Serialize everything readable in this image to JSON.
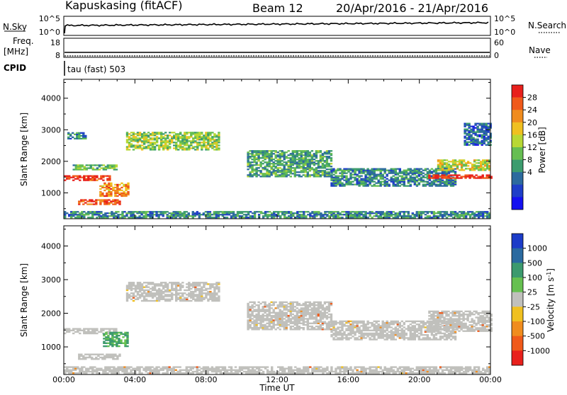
{
  "header": {
    "station": "Kapuskasing (fitACF)",
    "beam": "Beam 12",
    "date_range": "20/Apr/2016 - 21/Apr/2016"
  },
  "noise_panel": {
    "left_label": "N.Sky",
    "left_ticks": [
      "10^5",
      "10^0"
    ],
    "right_label": "N.Search",
    "right_ticks": [
      "10^5",
      "10^0"
    ]
  },
  "freq_panel": {
    "left_label_1": "Freq.",
    "left_label_2": "[MHz]",
    "left_ticks": [
      "18",
      "8"
    ],
    "right_label": "Nave",
    "right_ticks": [
      "60",
      "0"
    ]
  },
  "cpid": {
    "label": "CPID",
    "mode": "tau (fast) 503"
  },
  "colors": {
    "velocity_grey": "#c0c0bc"
  },
  "chart_data": [
    {
      "type": "heatmap",
      "quantity": "Power",
      "ylabel": "Slant Range [km]",
      "xlabel": "Time UT",
      "ylim": [
        180,
        4600
      ],
      "xlim": [
        0,
        24
      ],
      "yticks": [
        1000,
        2000,
        3000,
        4000
      ],
      "xticks": [
        "00:00",
        "04:00",
        "08:00",
        "12:00",
        "16:00",
        "20:00",
        "00:00"
      ],
      "colorbar": {
        "label": "Power [dB]",
        "ticks": [
          "28",
          "24",
          "20",
          "16",
          "12",
          "8",
          "4"
        ],
        "colors": [
          "#e8201c",
          "#f05a1a",
          "#f08c1e",
          "#f0c020",
          "#b8d834",
          "#66be52",
          "#3c9c6e",
          "#2c6a9e",
          "#1e3ec8",
          "#1410f0"
        ]
      },
      "bands": [
        {
          "t0": 0.0,
          "t1": 2.6,
          "r0": 1380,
          "r1": 1560,
          "level": 28
        },
        {
          "t0": 0.5,
          "t1": 3.0,
          "r0": 1720,
          "r1": 1860,
          "level": 12
        },
        {
          "t0": 0.8,
          "t1": 3.2,
          "r0": 620,
          "r1": 760,
          "level": 26
        },
        {
          "t0": 2.0,
          "t1": 3.6,
          "r0": 880,
          "r1": 1300,
          "level": 22
        },
        {
          "t0": 3.5,
          "t1": 8.7,
          "r0": 2350,
          "r1": 2900,
          "level": 14
        },
        {
          "t0": 0.2,
          "t1": 1.2,
          "r0": 2700,
          "r1": 2900,
          "level": 8
        },
        {
          "t0": 10.3,
          "t1": 15.0,
          "r0": 1500,
          "r1": 2350,
          "level": 10
        },
        {
          "t0": 15.0,
          "t1": 22.0,
          "r0": 1200,
          "r1": 1750,
          "level": 8
        },
        {
          "t0": 20.5,
          "t1": 24.0,
          "r0": 1450,
          "r1": 1580,
          "level": 28
        },
        {
          "t0": 21.0,
          "t1": 24.0,
          "r0": 1700,
          "r1": 2050,
          "level": 16
        },
        {
          "t0": 22.5,
          "t1": 24.0,
          "r0": 2500,
          "r1": 3200,
          "level": 6
        },
        {
          "t0": 0.0,
          "t1": 24.0,
          "r0": 200,
          "r1": 420,
          "level": 8
        }
      ]
    },
    {
      "type": "heatmap",
      "quantity": "Velocity",
      "ylabel": "Slant Range [km]",
      "xlabel": "Time UT",
      "ylim": [
        180,
        4600
      ],
      "xlim": [
        0,
        24
      ],
      "yticks": [
        1000,
        2000,
        3000,
        4000
      ],
      "xticks": [
        "00:00",
        "04:00",
        "08:00",
        "12:00",
        "16:00",
        "20:00",
        "00:00"
      ],
      "colorbar": {
        "label": "Velocity [m s^-1]",
        "ticks": [
          "1000",
          "500",
          "100",
          "25",
          "-25",
          "-100",
          "-500",
          "-1000"
        ],
        "colors": [
          "#1c3cc8",
          "#2a6aa0",
          "#3c9a6e",
          "#66c050",
          "#c0c0bc",
          "#f0c020",
          "#f08c1e",
          "#f05a1a",
          "#e8201c"
        ]
      },
      "bands": [
        {
          "t0": 0.0,
          "t1": 3.0,
          "r0": 1380,
          "r1": 1560,
          "level": 0
        },
        {
          "t0": 0.8,
          "t1": 3.2,
          "r0": 620,
          "r1": 760,
          "level": 0
        },
        {
          "t0": 2.2,
          "t1": 3.6,
          "r0": 1000,
          "r1": 1450,
          "level": 80
        },
        {
          "t0": 3.5,
          "t1": 8.7,
          "r0": 2350,
          "r1": 2900,
          "level": 0
        },
        {
          "t0": 10.3,
          "t1": 15.0,
          "r0": 1500,
          "r1": 2350,
          "level": 0
        },
        {
          "t0": 15.0,
          "t1": 22.0,
          "r0": 1200,
          "r1": 1750,
          "level": 0
        },
        {
          "t0": 20.5,
          "t1": 24.0,
          "r0": 1450,
          "r1": 2050,
          "level": 0
        },
        {
          "t0": 0.0,
          "t1": 24.0,
          "r0": 200,
          "r1": 420,
          "level": 0
        }
      ]
    }
  ]
}
